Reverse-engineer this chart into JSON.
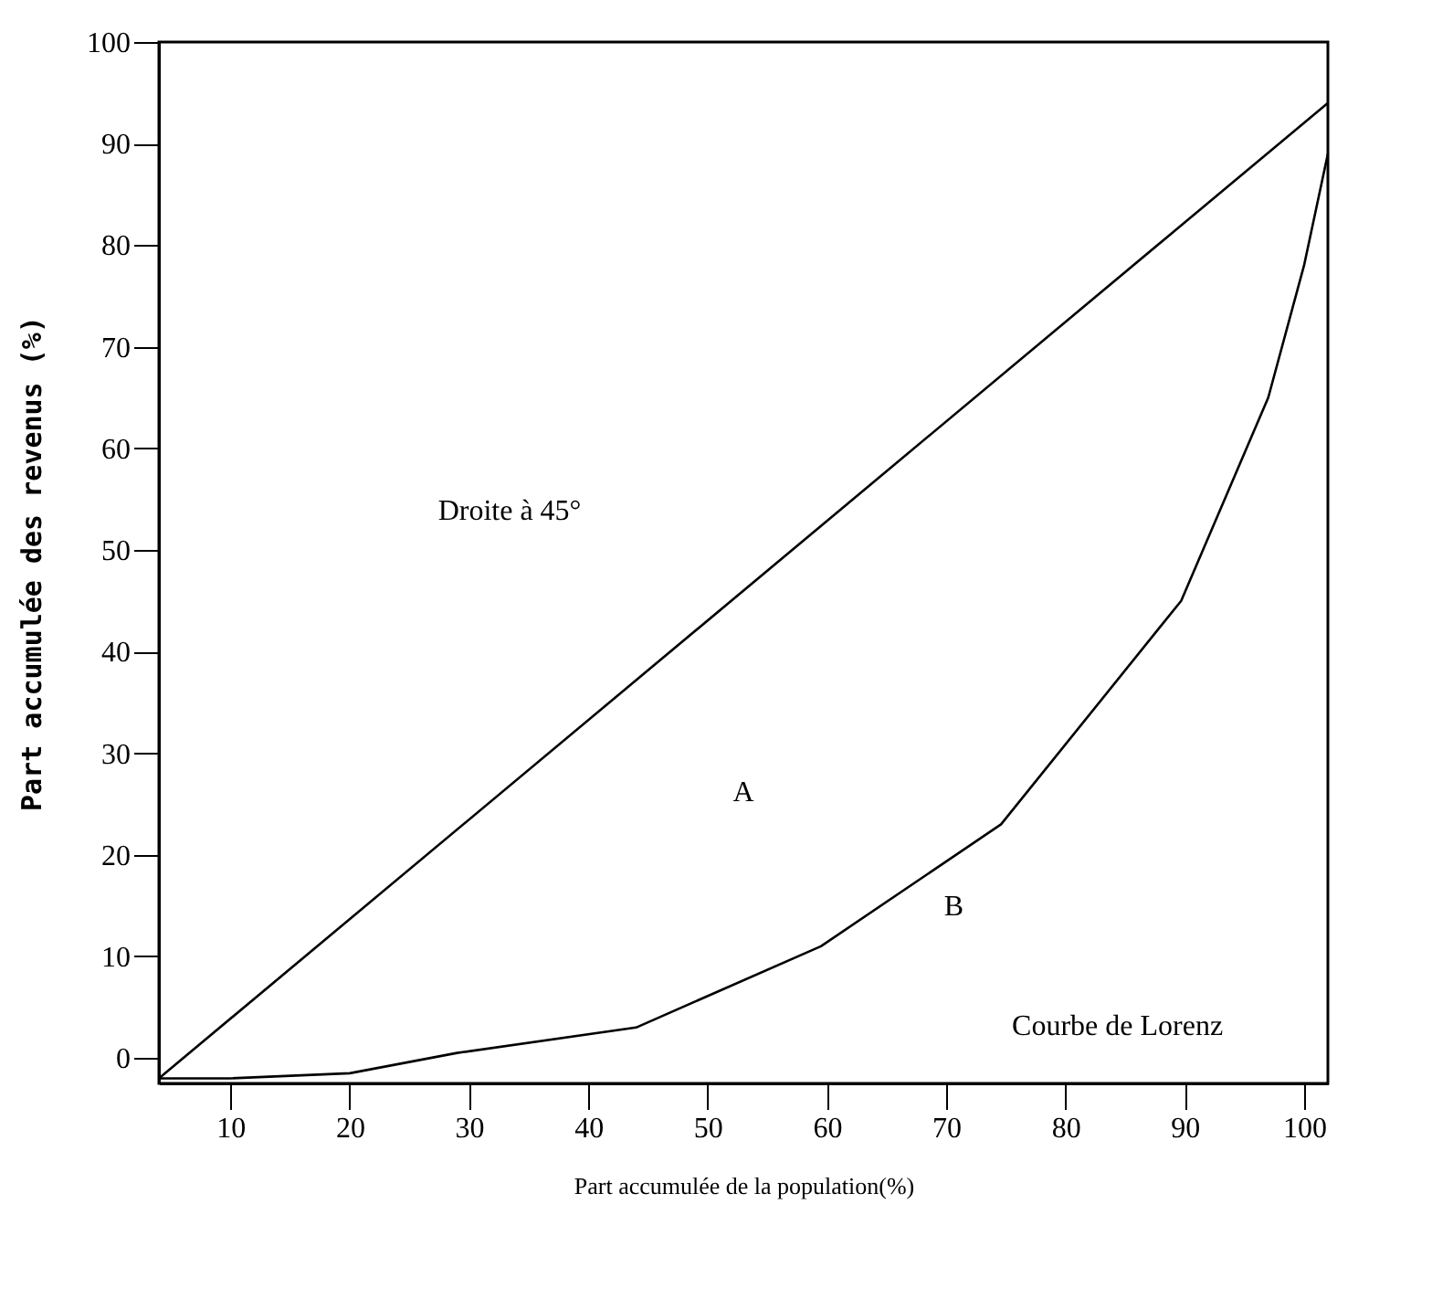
{
  "chart_data": {
    "type": "line",
    "xlabel": "Part accumulée de la population(%)",
    "ylabel": "Part accumulée des revenus (%)",
    "xlim": [
      4,
      102
    ],
    "ylim": [
      -2.5,
      100
    ],
    "xticks": [
      10,
      20,
      30,
      40,
      50,
      60,
      70,
      80,
      90,
      100
    ],
    "yticks": [
      0,
      10,
      20,
      30,
      40,
      50,
      60,
      70,
      80,
      90,
      100
    ],
    "series": [
      {
        "color": "#000000",
        "x": [
          4,
          102
        ],
        "values": [
          -2,
          94
        ]
      },
      {
        "color": "#000000",
        "x": [
          4,
          10,
          20,
          29,
          44,
          59.5,
          74.6,
          89.7,
          97,
          100,
          102
        ],
        "values": [
          -2,
          -2,
          -1.5,
          0.5,
          3,
          11,
          23,
          45,
          65,
          78,
          89
        ]
      }
    ],
    "annotations": [
      "Droite à 45°",
      "A",
      "B",
      "Courbe de Lorenz"
    ],
    "grid": false,
    "marker": "none",
    "line_style": "solid"
  }
}
